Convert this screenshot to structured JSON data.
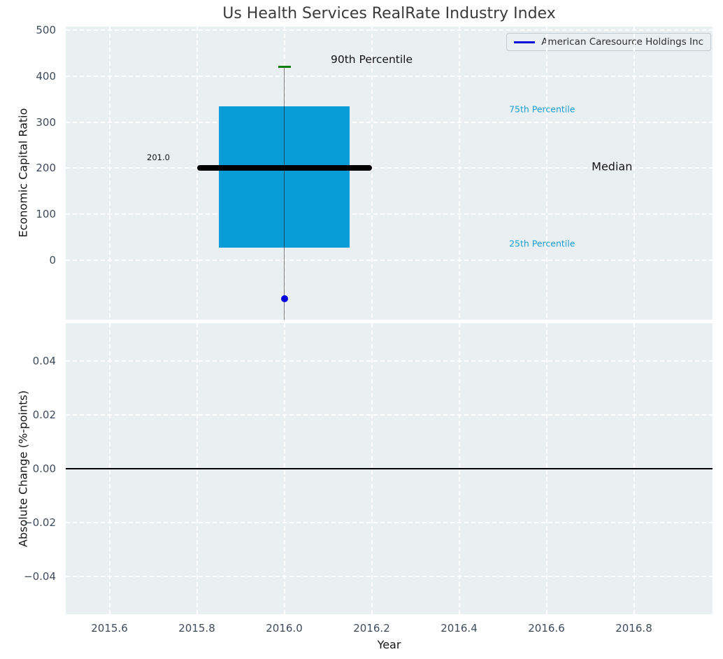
{
  "figure": {
    "title": "Us Health Services RealRate Industry Index"
  },
  "legend": {
    "label": "American Caresource Holdings Inc"
  },
  "colors": {
    "plot_background": "#eaeff1",
    "grid": "#ffffff",
    "box_fill": "#089dd6",
    "median_line": "#000000",
    "whisker": "#7d7d7d",
    "cap_90th": "#0a7d0a",
    "company_point": "#0404dd",
    "tick_label": "#3e4b5c",
    "percentile_label": "#1b9fd4",
    "annotation_text": "#141414",
    "zero_line": "#000000"
  },
  "chart_data": [
    {
      "type": "box",
      "ylabel": "Economic Capital Ratio",
      "ylim": [
        -130,
        508
      ],
      "xlim": [
        2015.5,
        2016.98
      ],
      "grid": true,
      "legend_position": "upper right",
      "yticks": [
        {
          "label": "500",
          "value": 500
        },
        {
          "label": "400",
          "value": 400
        },
        {
          "label": "300",
          "value": 300
        },
        {
          "label": "200",
          "value": 200
        },
        {
          "label": "100",
          "value": 100
        },
        {
          "label": "0",
          "value": 0
        }
      ],
      "box": {
        "center_x": 2016.0,
        "box_half_width": 0.15,
        "median_half_width": 0.2,
        "percentile_90": 420,
        "percentile_75": 335,
        "median": 201.0,
        "percentile_25": 27,
        "lower_whisker": "extends below visible axis"
      },
      "points": [
        {
          "name": "American Caresource Holdings Inc",
          "x": 2016.0,
          "y": -84
        }
      ],
      "annotations": [
        {
          "text": "90th Percentile",
          "x": 2016.2,
          "y": 436,
          "size": 15.5,
          "color": "#141414"
        },
        {
          "text": "75th Percentile",
          "x": 2016.59,
          "y": 328,
          "size": 12.5,
          "color": "#1b9fd4"
        },
        {
          "text": "Median",
          "x": 2016.75,
          "y": 204,
          "size": 16,
          "color": "#141414"
        },
        {
          "text": "25th Percentile",
          "x": 2016.59,
          "y": 36,
          "size": 12.5,
          "color": "#1b9fd4"
        },
        {
          "text": "201.0",
          "x": 2015.712,
          "y": 224,
          "size": 11.5,
          "color": "#141414"
        }
      ]
    },
    {
      "type": "line",
      "ylabel": "Absolute Change (%-points)",
      "xlabel": "Year",
      "ylim": [
        -0.054,
        0.054
      ],
      "xlim": [
        2015.5,
        2016.98
      ],
      "grid": true,
      "zero_line": 0.0,
      "yticks": [
        {
          "label": "0.04",
          "value": 0.04
        },
        {
          "label": "0.02",
          "value": 0.02
        },
        {
          "label": "0.00",
          "value": 0.0
        },
        {
          "label": "−0.02",
          "value": -0.02
        },
        {
          "label": "−0.04",
          "value": -0.04
        }
      ],
      "xticks": [
        {
          "label": "2015.6",
          "value": 2015.6
        },
        {
          "label": "2015.8",
          "value": 2015.8
        },
        {
          "label": "2016.0",
          "value": 2016.0
        },
        {
          "label": "2016.2",
          "value": 2016.2
        },
        {
          "label": "2016.4",
          "value": 2016.4
        },
        {
          "label": "2016.6",
          "value": 2016.6
        },
        {
          "label": "2016.8",
          "value": 2016.8
        }
      ],
      "series": [
        {
          "name": "American Caresource Holdings Inc",
          "color": "#0404dd",
          "points": []
        }
      ]
    }
  ]
}
